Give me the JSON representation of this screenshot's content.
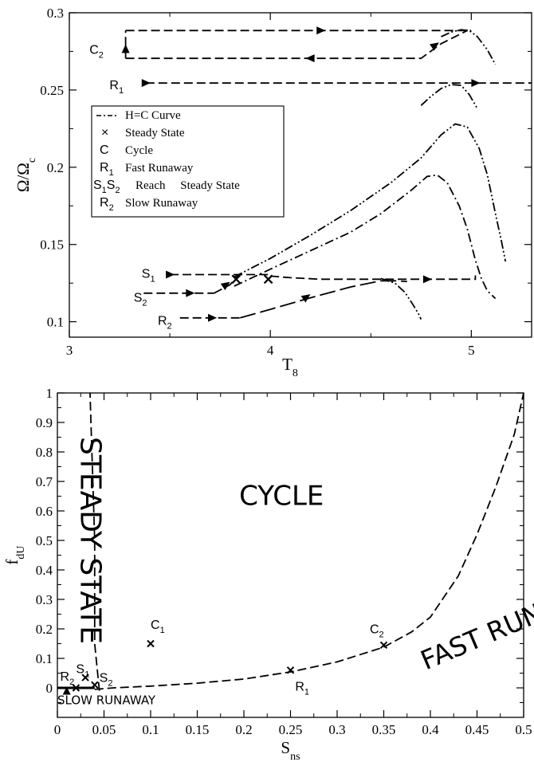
{
  "chart_data": [
    {
      "type": "line",
      "title": "",
      "xlabel": "T",
      "xlabel_sub": "8",
      "ylabel": "Ω/Ω",
      "ylabel_sub": "c",
      "xlim": [
        3,
        5.3
      ],
      "ylim": [
        0.09,
        0.3
      ],
      "xticks": [
        {
          "v": 3,
          "label": "3"
        },
        {
          "v": 4,
          "label": "4"
        },
        {
          "v": 5,
          "label": "5"
        }
      ],
      "yticks": [
        {
          "v": 0.1,
          "label": "0.1"
        },
        {
          "v": 0.15,
          "label": "0.15"
        },
        {
          "v": 0.2,
          "label": "0.2"
        },
        {
          "v": 0.25,
          "label": "0.25"
        },
        {
          "v": 0.3,
          "label": "0.3"
        }
      ],
      "legend_position": "upper-left",
      "legend": [
        {
          "symbol": "line",
          "text": "H=C Curve"
        },
        {
          "symbol": "×",
          "text": "Steady State"
        },
        {
          "symbol": "C",
          "text": "Cycle"
        },
        {
          "symbol": "R",
          "symbol_sub": "1",
          "text": "Fast Runaway"
        },
        {
          "symbol": "S",
          "symbol_sub": "1",
          "symbol2": "S",
          "symbol2_sub": "2",
          "text": "Reach     Steady State"
        },
        {
          "symbol": "R",
          "symbol_sub": "2",
          "text": "Slow Runaway"
        }
      ],
      "series": [
        {
          "style": "dashdotdot",
          "points": [
            [
              4.75,
              0.24
            ],
            [
              4.8,
              0.246
            ],
            [
              4.85,
              0.251
            ],
            [
              4.9,
              0.2535
            ],
            [
              4.95,
              0.253
            ],
            [
              4.99,
              0.247
            ],
            [
              5.03,
              0.238
            ]
          ]
        },
        {
          "style": "dashdotdot",
          "points": [
            [
              4.85,
              0.2845
            ],
            [
              4.9,
              0.2875
            ],
            [
              4.95,
              0.289
            ],
            [
              4.99,
              0.2885
            ],
            [
              5.03,
              0.2845
            ],
            [
              5.08,
              0.276
            ],
            [
              5.12,
              0.2665
            ]
          ]
        },
        {
          "style": "dashdotdot",
          "points": [
            [
              3.82,
              0.129
            ],
            [
              4.0,
              0.141
            ],
            [
              4.2,
              0.156
            ],
            [
              4.4,
              0.172
            ],
            [
              4.6,
              0.19
            ],
            [
              4.75,
              0.206
            ],
            [
              4.85,
              0.221
            ],
            [
              4.92,
              0.228
            ],
            [
              4.98,
              0.226
            ],
            [
              5.04,
              0.212
            ],
            [
              5.08,
              0.195
            ],
            [
              5.12,
              0.17
            ],
            [
              5.15,
              0.152
            ],
            [
              5.17,
              0.139
            ]
          ]
        },
        {
          "style": "dashdot",
          "points": [
            [
              3.82,
              0.123
            ],
            [
              4.0,
              0.134
            ],
            [
              4.2,
              0.146
            ],
            [
              4.4,
              0.158
            ],
            [
              4.55,
              0.17
            ],
            [
              4.7,
              0.185
            ],
            [
              4.78,
              0.194
            ],
            [
              4.83,
              0.195
            ],
            [
              4.88,
              0.19
            ],
            [
              4.94,
              0.175
            ],
            [
              4.98,
              0.16
            ],
            [
              5.02,
              0.14
            ],
            [
              5.05,
              0.128
            ],
            [
              5.08,
              0.12
            ],
            [
              5.12,
              0.115
            ]
          ]
        },
        {
          "style": "dashdotdot",
          "points": [
            [
              4.55,
              0.128
            ],
            [
              4.62,
              0.125
            ],
            [
              4.67,
              0.119
            ],
            [
              4.71,
              0.111
            ],
            [
              4.74,
              0.1045
            ],
            [
              4.75,
              0.1015
            ]
          ]
        },
        {
          "style": "dashed",
          "points": [
            [
              3.28,
              0.2885
            ],
            [
              5.0,
              0.2885
            ]
          ]
        },
        {
          "style": "dashed",
          "points": [
            [
              3.28,
              0.2705
            ],
            [
              4.75,
              0.2705
            ],
            [
              4.85,
              0.28
            ],
            [
              4.98,
              0.2885
            ]
          ]
        },
        {
          "style": "dashed",
          "points": [
            [
              3.28,
              0.2705
            ],
            [
              3.28,
              0.2885
            ]
          ]
        },
        {
          "style": "dashed",
          "points": [
            [
              3.38,
              0.2545
            ],
            [
              5.3,
              0.2545
            ]
          ]
        },
        {
          "style": "dashed",
          "points": [
            [
              3.5,
              0.1305
            ],
            [
              4.0,
              0.1305
            ]
          ]
        },
        {
          "style": "dashed",
          "points": [
            [
              4.0,
              0.1295
            ],
            [
              4.1,
              0.1285
            ],
            [
              4.25,
              0.1275
            ],
            [
              4.5,
              0.1275
            ],
            [
              5.02,
              0.1275
            ],
            [
              5.02,
              0.13
            ]
          ]
        },
        {
          "style": "dashed",
          "points": [
            [
              3.37,
              0.1185
            ],
            [
              3.72,
              0.1185
            ]
          ]
        },
        {
          "style": "dashed",
          "points": [
            [
              3.72,
              0.1185
            ],
            [
              3.8,
              0.124
            ],
            [
              3.83,
              0.1285
            ],
            [
              3.85,
              0.1305
            ]
          ]
        },
        {
          "style": "dashed",
          "points": [
            [
              3.55,
              0.1025
            ],
            [
              3.85,
              0.1025
            ]
          ]
        },
        {
          "style": "longdash",
          "points": [
            [
              3.85,
              0.1025
            ],
            [
              4.0,
              0.108
            ],
            [
              4.2,
              0.1155
            ],
            [
              4.4,
              0.1225
            ],
            [
              4.55,
              0.1265
            ],
            [
              4.62,
              0.1265
            ],
            [
              4.68,
              0.126
            ]
          ]
        }
      ],
      "arrows": [
        {
          "x": 4.25,
          "y": 0.2885,
          "dir": "right"
        },
        {
          "x": 4.2,
          "y": 0.2705,
          "dir": "left"
        },
        {
          "x": 4.82,
          "y": 0.279,
          "dir": "up-right"
        },
        {
          "x": 3.28,
          "y": 0.2765,
          "dir": "up"
        },
        {
          "x": 3.38,
          "y": 0.2545,
          "dir": "right"
        },
        {
          "x": 5.02,
          "y": 0.2545,
          "dir": "right"
        },
        {
          "x": 3.5,
          "y": 0.1305,
          "dir": "right"
        },
        {
          "x": 3.6,
          "y": 0.1185,
          "dir": "right"
        },
        {
          "x": 3.78,
          "y": 0.124,
          "dir": "up-right"
        },
        {
          "x": 3.71,
          "y": 0.1025,
          "dir": "right"
        },
        {
          "x": 4.18,
          "y": 0.116,
          "dir": "up-right"
        },
        {
          "x": 4.78,
          "y": 0.1275,
          "dir": "right"
        }
      ],
      "steady_markers": [
        {
          "x": 3.83,
          "y": 0.1275
        },
        {
          "x": 3.99,
          "y": 0.1275
        }
      ],
      "point_labels": [
        {
          "x": 3.1,
          "y": 0.2765,
          "text": "C",
          "sub": "2"
        },
        {
          "x": 3.2,
          "y": 0.2535,
          "text": "R",
          "sub": "1"
        },
        {
          "x": 3.36,
          "y": 0.1315,
          "text": "S",
          "sub": "1"
        },
        {
          "x": 3.32,
          "y": 0.116,
          "text": "S",
          "sub": "2"
        },
        {
          "x": 3.44,
          "y": 0.101,
          "text": "R",
          "sub": "2"
        }
      ]
    },
    {
      "type": "scatter",
      "title": "",
      "xlabel": "S",
      "xlabel_sub": "ns",
      "ylabel": "f",
      "ylabel_sub": "dU",
      "xlim": [
        0,
        0.5
      ],
      "ylim": [
        -0.1,
        1
      ],
      "xticks": [
        {
          "v": 0,
          "label": "0"
        },
        {
          "v": 0.05,
          "label": "0.05"
        },
        {
          "v": 0.1,
          "label": "0.1"
        },
        {
          "v": 0.15,
          "label": "0.15"
        },
        {
          "v": 0.2,
          "label": "0.2"
        },
        {
          "v": 0.25,
          "label": "0.25"
        },
        {
          "v": 0.3,
          "label": "0.3"
        },
        {
          "v": 0.35,
          "label": "0.35"
        },
        {
          "v": 0.4,
          "label": "0.4"
        },
        {
          "v": 0.45,
          "label": "0.45"
        },
        {
          "v": 0.5,
          "label": "0.5"
        }
      ],
      "yticks": [
        {
          "v": 0,
          "label": "0"
        },
        {
          "v": 0.1,
          "label": "0.1"
        },
        {
          "v": 0.2,
          "label": "0.2"
        },
        {
          "v": 0.3,
          "label": "0.3"
        },
        {
          "v": 0.4,
          "label": "0.4"
        },
        {
          "v": 0.5,
          "label": "0.5"
        },
        {
          "v": 0.6,
          "label": "0.6"
        },
        {
          "v": 0.7,
          "label": "0.7"
        },
        {
          "v": 0.8,
          "label": "0.8"
        },
        {
          "v": 0.9,
          "label": "0.9"
        },
        {
          "v": 1,
          "label": "1"
        }
      ],
      "boundary_left": [
        [
          0.045,
          -0.01
        ],
        [
          0.04,
          0.15
        ],
        [
          0.04,
          0.3
        ],
        [
          0.04,
          0.5
        ],
        [
          0.038,
          0.7
        ],
        [
          0.036,
          0.9
        ],
        [
          0.035,
          1.0
        ]
      ],
      "boundary_right": [
        [
          0.04,
          -0.005
        ],
        [
          0.06,
          0.0
        ],
        [
          0.1,
          0.006
        ],
        [
          0.15,
          0.016
        ],
        [
          0.2,
          0.03
        ],
        [
          0.25,
          0.054
        ],
        [
          0.3,
          0.088
        ],
        [
          0.35,
          0.138
        ],
        [
          0.38,
          0.19
        ],
        [
          0.4,
          0.24
        ],
        [
          0.43,
          0.38
        ],
        [
          0.45,
          0.52
        ],
        [
          0.47,
          0.68
        ],
        [
          0.49,
          0.86
        ],
        [
          0.5,
          1.0
        ]
      ],
      "slow_runaway_line": [
        [
          0.0,
          0.0
        ],
        [
          0.04,
          0.0
        ]
      ],
      "points": [
        {
          "x": 0.1,
          "y": 0.15,
          "label": "C",
          "sub": "1",
          "lx": 0.1,
          "ly": 0.2,
          "anchor": "start"
        },
        {
          "x": 0.35,
          "y": 0.145,
          "label": "C",
          "sub": "2",
          "lx": 0.335,
          "ly": 0.185,
          "anchor": "start"
        },
        {
          "x": 0.25,
          "y": 0.06,
          "label": "R",
          "sub": "1",
          "lx": 0.255,
          "ly": -0.01,
          "anchor": "start"
        },
        {
          "x": 0.03,
          "y": 0.035,
          "label": "S",
          "sub": "1",
          "lx": 0.02,
          "ly": 0.05,
          "anchor": "start"
        },
        {
          "x": 0.04,
          "y": 0.01,
          "label": "S",
          "sub": "2",
          "lx": 0.045,
          "ly": 0.02,
          "anchor": "start"
        },
        {
          "x": 0.02,
          "y": 0.0,
          "label": "R",
          "sub": "2",
          "lx": 0.003,
          "ly": 0.025,
          "anchor": "start"
        }
      ],
      "regions": [
        {
          "text": "CYCLE",
          "x": 0.195,
          "y": 0.62,
          "rotate": 0,
          "size": 34
        },
        {
          "text": "STEADY STATE",
          "x": 0.025,
          "y": 0.5,
          "rotate": 90,
          "size": 36
        },
        {
          "text": "FAST RUNAWAY",
          "x": 0.395,
          "y": 0.06,
          "rotate": -23,
          "size": 33
        },
        {
          "text": "SLOW RUNAWAY",
          "x": 0.0,
          "y": -0.055,
          "rotate": 0,
          "size": 15
        }
      ],
      "markers": [
        {
          "x": 0.01,
          "y": -0.012,
          "shape": "triangle-up"
        }
      ]
    }
  ]
}
